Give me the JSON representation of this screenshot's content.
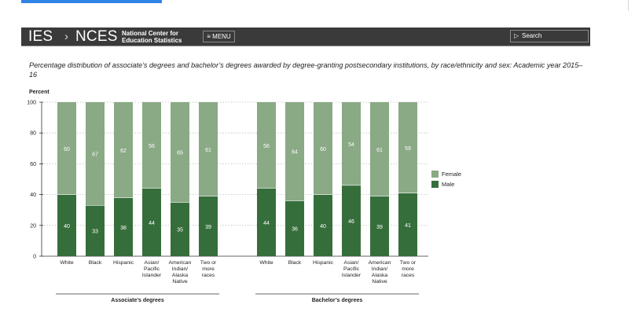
{
  "header": {
    "logo_ies": "IES",
    "logo_separator": "›",
    "logo_nces": "NCES",
    "org_name": "National Center for\nEducation Statistics",
    "menu_icon": "hamburger-icon",
    "menu_label": "≡ MENU",
    "search_icon": "search-icon",
    "search_label": "Search"
  },
  "caption": "Percentage distribution of associate’s degrees and bachelor’s degrees awarded by degree-granting postsecondary institutions, by race/ethnicity and sex: Academic year 2015–16",
  "colors": {
    "header_bg": "#3a3a3a",
    "female": "#8aa985",
    "male": "#366e3b",
    "accent_strip": "#2f83e4"
  },
  "chart_data": {
    "type": "bar",
    "stacked": true,
    "ylabel": "Percent",
    "ylim": [
      0,
      100
    ],
    "yticks": [
      0,
      20,
      40,
      60,
      80,
      100
    ],
    "grid": true,
    "legend_position": "right",
    "legend": [
      "Female",
      "Male"
    ],
    "groups": [
      {
        "label": "Associate’s degrees",
        "categories": [
          "White",
          "Black",
          "Hispanic",
          "Asian/\nPacific\nIslander",
          "American\nIndian/\nAlaska\nNative",
          "Two or\nmore\nraces"
        ],
        "series": [
          {
            "name": "Male",
            "values": [
              40,
              33,
              38,
              44,
              35,
              39
            ]
          },
          {
            "name": "Female",
            "values": [
              60,
              67,
              62,
              56,
              65,
              61
            ]
          }
        ]
      },
      {
        "label": "Bachelor’s degrees",
        "categories": [
          "White",
          "Black",
          "Hispanic",
          "Asian/\nPacific\nIslander",
          "American\nIndian/\nAlaska\nNative",
          "Two or\nmore\nraces"
        ],
        "series": [
          {
            "name": "Male",
            "values": [
              44,
              36,
              40,
              46,
              39,
              41
            ]
          },
          {
            "name": "Female",
            "values": [
              56,
              64,
              60,
              54,
              61,
              59
            ]
          }
        ]
      }
    ]
  }
}
